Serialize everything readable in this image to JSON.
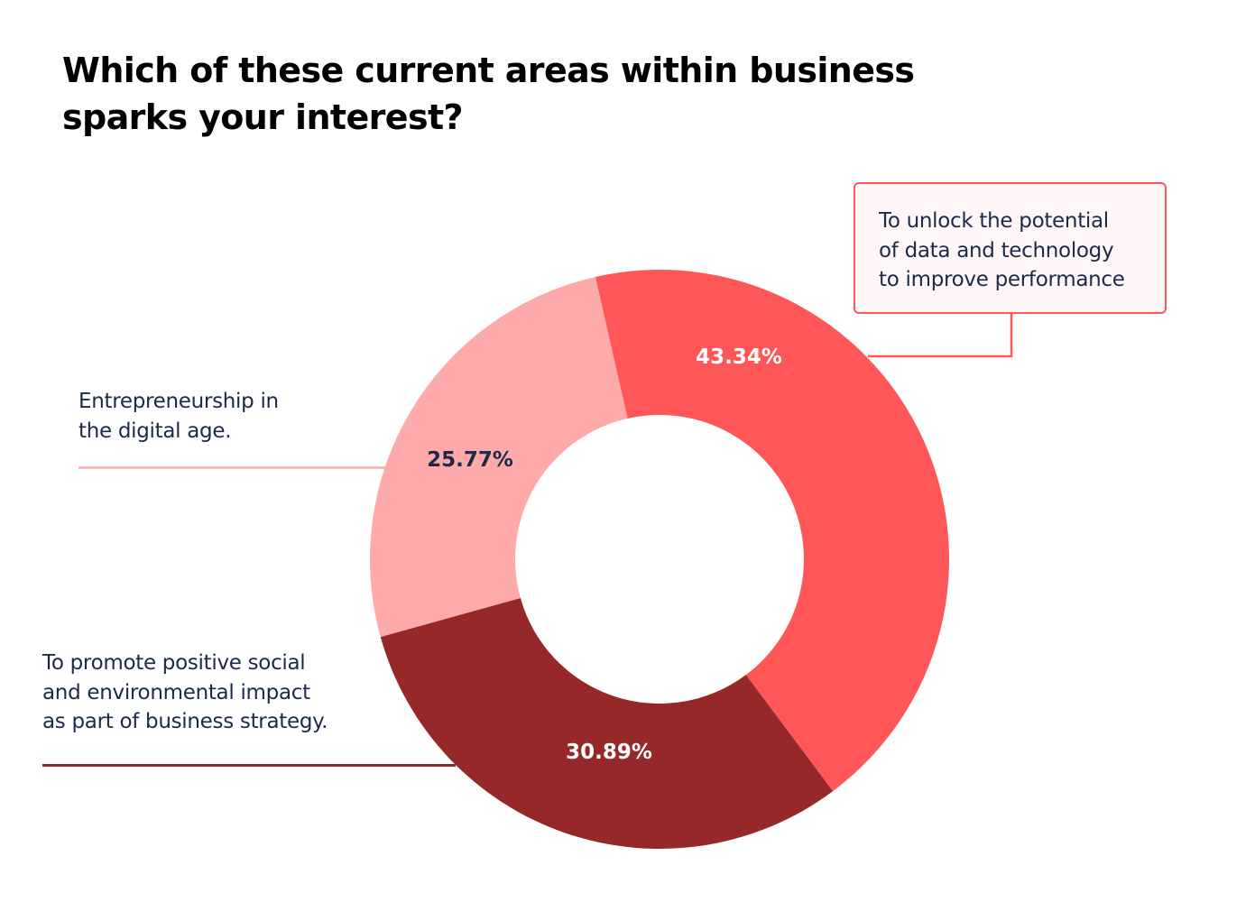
{
  "title": {
    "line1": "Which of these current areas within business",
    "line2": "sparks your interest?"
  },
  "labels": {
    "data_tech": {
      "line1": "To unlock the potential",
      "line2": "of data and technology",
      "line3": "to improve performance"
    },
    "entrepreneurship": {
      "line1": "Entrepreneurship in",
      "line2": "the digital age."
    },
    "social": {
      "line1": "To promote positive social",
      "line2": "and environmental impact",
      "line3": "as part of business strategy."
    }
  },
  "percent_labels": {
    "data_tech": "43.34%",
    "social": "30.89%",
    "entrepreneurship": "25.77%"
  },
  "colors": {
    "data_tech": "#ff5757",
    "social": "#962829",
    "entrepreneurship": "#ffaaaa",
    "label_text": "#1c2a4a",
    "pct_light": "#ffffff",
    "pct_dark": "#1c2a4a"
  },
  "chart_data": {
    "type": "pie",
    "subtype": "donut",
    "title": "Which of these current areas within business sparks your interest?",
    "categories": [
      "To unlock the potential of data and technology to improve performance",
      "To promote positive social and environmental impact as part of business strategy.",
      "Entrepreneurship in the digital age."
    ],
    "values": [
      43.34,
      30.89,
      25.77
    ],
    "unit": "%",
    "colors": [
      "#ff5757",
      "#962829",
      "#ffaaaa"
    ],
    "start_angle_deg": -12.8,
    "direction": "clockwise",
    "legend": "callout labels with leader lines"
  }
}
